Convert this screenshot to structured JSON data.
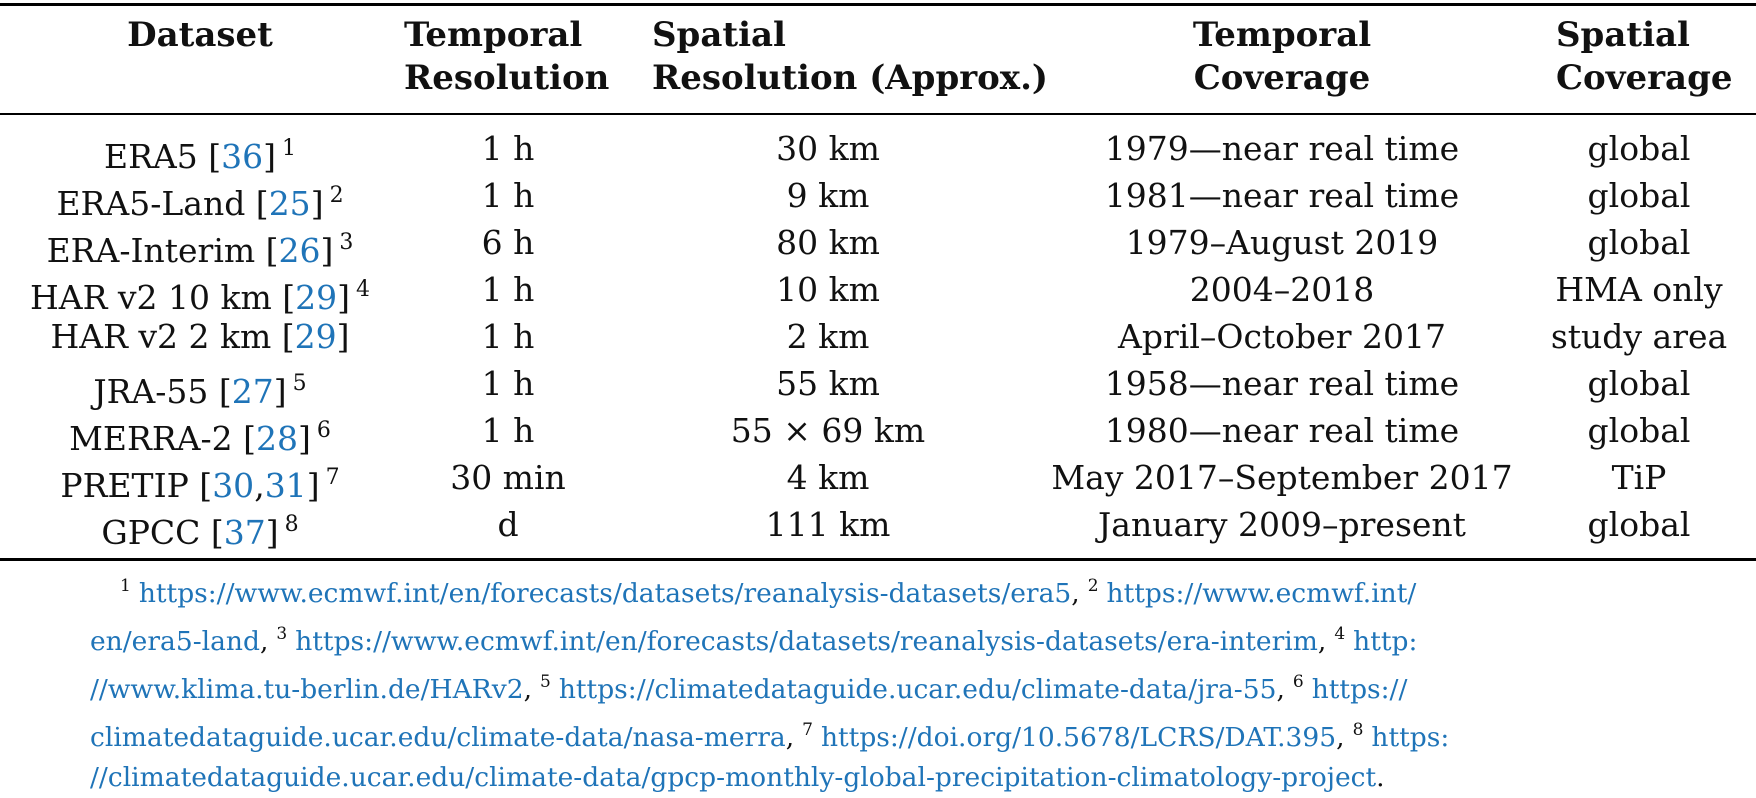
{
  "table": {
    "headers": {
      "dataset": "Dataset",
      "temporal_resolution": [
        "Temporal",
        "Resolution"
      ],
      "spatial_resolution": [
        "Spatial",
        "Resolution (Approx.)"
      ],
      "temporal_coverage": [
        "Temporal",
        "Coverage"
      ],
      "spatial_coverage": [
        "Spatial",
        "Coverage"
      ]
    },
    "rows": [
      {
        "name": "ERA5 [",
        "refs": [
          "36"
        ],
        "close": "]",
        "fn": "1",
        "temporal_resolution": "1 h",
        "spatial_resolution": "30 km",
        "temporal_coverage": "1979—near real time",
        "spatial_coverage": "global"
      },
      {
        "name": "ERA5-Land [",
        "refs": [
          "25"
        ],
        "close": "]",
        "fn": "2",
        "temporal_resolution": "1 h",
        "spatial_resolution": "9 km",
        "temporal_coverage": "1981—near real time",
        "spatial_coverage": "global"
      },
      {
        "name": "ERA-Interim [",
        "refs": [
          "26"
        ],
        "close": "]",
        "fn": "3",
        "temporal_resolution": "6 h",
        "spatial_resolution": "80 km",
        "temporal_coverage": "1979–August 2019",
        "spatial_coverage": "global"
      },
      {
        "name": "HAR v2 10 km [",
        "refs": [
          "29"
        ],
        "close": "]",
        "fn": "4",
        "temporal_resolution": "1 h",
        "spatial_resolution": "10 km",
        "temporal_coverage": "2004–2018",
        "spatial_coverage": "HMA only"
      },
      {
        "name": "HAR v2 2 km [",
        "refs": [
          "29"
        ],
        "close": "]",
        "fn": "",
        "temporal_resolution": "1 h",
        "spatial_resolution": "2 km",
        "temporal_coverage": "April–October 2017",
        "spatial_coverage": "study area"
      },
      {
        "name": "JRA-55 [",
        "refs": [
          "27"
        ],
        "close": "]",
        "fn": "5",
        "temporal_resolution": "1 h",
        "spatial_resolution": "55 km",
        "temporal_coverage": "1958—near real time",
        "spatial_coverage": "global"
      },
      {
        "name": "MERRA-2 [",
        "refs": [
          "28"
        ],
        "close": "]",
        "fn": "6",
        "temporal_resolution": "1 h",
        "spatial_resolution": "55 × 69  km",
        "temporal_coverage": "1980—near real time",
        "spatial_coverage": "global"
      },
      {
        "name": "PRETIP [",
        "refs": [
          "30",
          "31"
        ],
        "close": "]",
        "fn": "7",
        "temporal_resolution": "30 min",
        "spatial_resolution": "4 km",
        "temporal_coverage": "May 2017–September 2017",
        "spatial_coverage": "TiP"
      },
      {
        "name": "GPCC [",
        "refs": [
          "37"
        ],
        "close": "]",
        "fn": "8",
        "temporal_resolution": "d",
        "spatial_resolution": "111 km",
        "temporal_coverage": "January 2009–present",
        "spatial_coverage": "global"
      }
    ]
  },
  "footnotes": {
    "lines": [
      [
        {
          "kind": "num",
          "text": "1"
        },
        {
          "kind": "link",
          "text": "https://www.ecmwf.int/en/forecasts/datasets/reanalysis-datasets/era5"
        },
        {
          "kind": "sep",
          "text": ","
        },
        {
          "kind": "num",
          "text": "2"
        },
        {
          "kind": "link",
          "text": "https://www.ecmwf.int/"
        }
      ],
      [
        {
          "kind": "link",
          "text": "en/era5-land"
        },
        {
          "kind": "sep",
          "text": ","
        },
        {
          "kind": "num",
          "text": "3"
        },
        {
          "kind": "link",
          "text": "https://www.ecmwf.int/en/forecasts/datasets/reanalysis-datasets/era-interim"
        },
        {
          "kind": "sep",
          "text": ","
        },
        {
          "kind": "num",
          "text": "4"
        },
        {
          "kind": "link",
          "text": "http:"
        }
      ],
      [
        {
          "kind": "link",
          "text": "//www.klima.tu-berlin.de/HARv2"
        },
        {
          "kind": "sep",
          "text": ","
        },
        {
          "kind": "num",
          "text": "5"
        },
        {
          "kind": "link",
          "text": "https://climatedataguide.ucar.edu/climate-data/jra-55"
        },
        {
          "kind": "sep",
          "text": ","
        },
        {
          "kind": "num",
          "text": "6"
        },
        {
          "kind": "link",
          "text": "https://"
        }
      ],
      [
        {
          "kind": "link",
          "text": "climatedataguide.ucar.edu/climate-data/nasa-merra"
        },
        {
          "kind": "sep",
          "text": ","
        },
        {
          "kind": "num",
          "text": "7"
        },
        {
          "kind": "link",
          "text": "https://doi.org/10.5678/LCRS/DAT.395"
        },
        {
          "kind": "sep",
          "text": ","
        },
        {
          "kind": "num",
          "text": "8"
        },
        {
          "kind": "link",
          "text": "https:"
        }
      ],
      [
        {
          "kind": "link",
          "text": "//climatedataguide.ucar.edu/climate-data/gpcp-monthly-global-precipitation-climatology-project"
        },
        {
          "kind": "end",
          "text": "."
        }
      ]
    ]
  },
  "colors": {
    "link": "#1f74b8",
    "text": "#111111",
    "rule": "#000000"
  }
}
